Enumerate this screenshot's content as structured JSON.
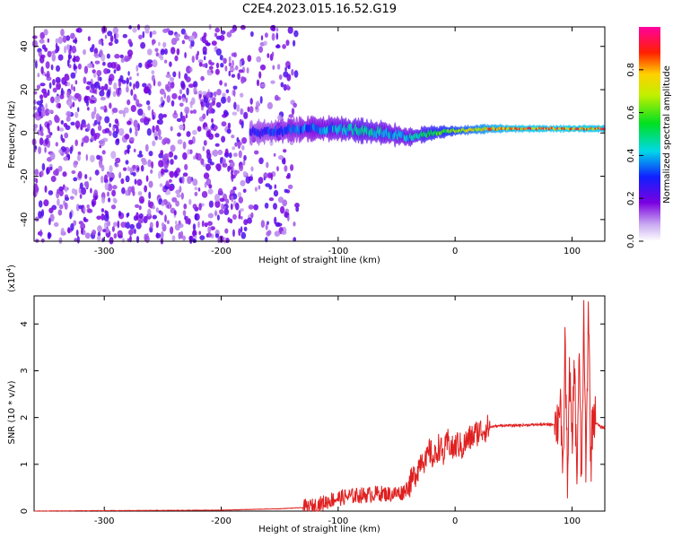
{
  "title": "C2E4.2023.015.16.52.G19",
  "chart_data": [
    {
      "type": "heatmap",
      "xlabel": "Height of straight line (km)",
      "ylabel": "Frequency (Hz)",
      "xlim": [
        -360,
        128
      ],
      "ylim": [
        -50,
        49
      ],
      "xticks": [
        -300,
        -200,
        -100,
        0,
        100
      ],
      "yticks": [
        -40,
        -20,
        0,
        20,
        40
      ],
      "colorbar": {
        "label": "Normalized spectral amplitude",
        "range": [
          0.0,
          1.0
        ],
        "ticks": [
          0.0,
          0.2,
          0.4,
          0.6,
          0.8
        ],
        "colormap": "rainbow (white -> violet -> blue -> cyan -> green -> yellow -> red -> magenta)"
      },
      "noise_region_x": [
        -360,
        -135
      ],
      "signal_band": [
        {
          "x": -175,
          "center": 0,
          "halfwidth": 5,
          "amp": 0.3
        },
        {
          "x": -150,
          "center": 1,
          "halfwidth": 5,
          "amp": 0.35
        },
        {
          "x": -120,
          "center": 2,
          "halfwidth": 5,
          "amp": 0.4
        },
        {
          "x": -100,
          "center": 2,
          "halfwidth": 5,
          "amp": 0.45
        },
        {
          "x": -80,
          "center": 1,
          "halfwidth": 5,
          "amp": 0.5
        },
        {
          "x": -60,
          "center": 0,
          "halfwidth": 5,
          "amp": 0.45
        },
        {
          "x": -40,
          "center": -2,
          "halfwidth": 4,
          "amp": 0.45
        },
        {
          "x": -20,
          "center": 0,
          "halfwidth": 3,
          "amp": 0.6
        },
        {
          "x": 0,
          "center": 1,
          "halfwidth": 2,
          "amp": 0.7
        },
        {
          "x": 30,
          "center": 2,
          "halfwidth": 2,
          "amp": 0.85
        },
        {
          "x": 60,
          "center": 2,
          "halfwidth": 1.5,
          "amp": 0.9
        },
        {
          "x": 85,
          "center": 2,
          "halfwidth": 1.5,
          "amp": 0.9
        },
        {
          "x": 110,
          "center": 2,
          "halfwidth": 1.5,
          "amp": 0.9
        },
        {
          "x": 128,
          "center": 2,
          "halfwidth": 1.5,
          "amp": 0.9
        }
      ]
    },
    {
      "type": "line",
      "xlabel": "Height of straight line (km)",
      "ylabel": "SNR (10 * v/v)",
      "yscale_label": "(x10",
      "yscale_exp": "4",
      "yscale_close": ")",
      "xlim": [
        -360,
        128
      ],
      "ylim": [
        0,
        4.6
      ],
      "xticks": [
        -300,
        -200,
        -100,
        0,
        100
      ],
      "yticks": [
        0,
        1,
        2,
        3,
        4
      ],
      "color": "#e02020",
      "series": [
        {
          "x": [
            -360,
            -300,
            -200,
            -150,
            -125,
            -115,
            -105,
            -95,
            -85,
            -75,
            -65,
            -55,
            -45,
            -38,
            -32,
            -28,
            -25,
            -22,
            -18,
            -14,
            -10,
            -6,
            -2,
            2,
            6,
            10,
            15,
            20,
            25,
            30,
            40,
            50,
            60,
            70,
            80,
            85,
            88,
            90,
            92,
            94,
            96,
            98,
            100,
            102,
            104,
            106,
            108,
            110,
            112,
            114,
            116,
            118,
            120,
            124,
            128
          ],
          "y": [
            0.0,
            0.01,
            0.02,
            0.05,
            0.08,
            0.15,
            0.25,
            0.3,
            0.33,
            0.35,
            0.38,
            0.36,
            0.4,
            0.6,
            0.9,
            1.2,
            1.0,
            1.3,
            1.1,
            1.4,
            1.2,
            1.5,
            1.3,
            1.45,
            1.35,
            1.5,
            1.6,
            1.7,
            1.75,
            1.8,
            1.83,
            1.83,
            1.84,
            1.85,
            1.85,
            1.86,
            1.9,
            2.6,
            0.3,
            3.6,
            0.8,
            3.0,
            1.2,
            3.3,
            0.6,
            3.4,
            0.5,
            4.0,
            0.8,
            4.6,
            1.0,
            2.2,
            1.9,
            1.8,
            1.78
          ]
        }
      ]
    }
  ]
}
